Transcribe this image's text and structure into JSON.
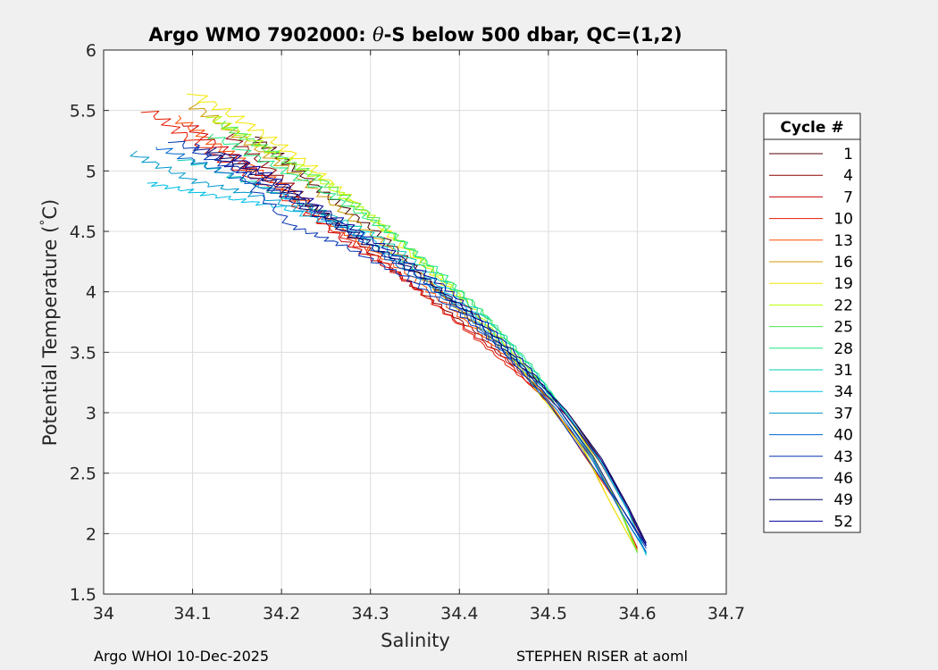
{
  "chart_data": {
    "type": "line",
    "title_prefix": "Argo WMO 7902000: ",
    "title_theta": "θ",
    "title_suffix": "-S below 500 dbar,  QC=(1,2)",
    "xlabel": "Salinity",
    "ylabel_main": "Potential Temperature (",
    "ylabel_deg": "°",
    "ylabel_unit": "C)",
    "xlim": [
      34.0,
      34.7
    ],
    "ylim": [
      1.5,
      6.0
    ],
    "xticks": [
      34.0,
      34.1,
      34.2,
      34.3,
      34.4,
      34.5,
      34.6,
      34.7
    ],
    "xtick_labels": [
      "34",
      "34.1",
      "34.2",
      "34.3",
      "34.4",
      "34.5",
      "34.6",
      "34.7"
    ],
    "yticks": [
      1.5,
      2.0,
      2.5,
      3.0,
      3.5,
      4.0,
      4.5,
      5.0,
      5.5,
      6.0
    ],
    "ytick_labels": [
      "1.5",
      "2",
      "2.5",
      "3",
      "3.5",
      "4",
      "4.5",
      "5",
      "5.5",
      "6"
    ],
    "grid": true,
    "legend_title": "Cycle #",
    "legend_position": "outside-right",
    "series": [
      {
        "name": "1",
        "color": "#4d0000",
        "points": [
          [
            34.17,
            5.28
          ],
          [
            34.21,
            5.05
          ],
          [
            34.26,
            4.75
          ],
          [
            34.32,
            4.42
          ],
          [
            34.37,
            4.05
          ],
          [
            34.42,
            3.72
          ],
          [
            34.47,
            3.38
          ],
          [
            34.52,
            3.02
          ],
          [
            34.56,
            2.6
          ],
          [
            34.59,
            2.22
          ],
          [
            34.61,
            1.92
          ]
        ]
      },
      {
        "name": "4",
        "color": "#8c0000",
        "points": [
          [
            34.14,
            5.3
          ],
          [
            34.19,
            5.0
          ],
          [
            34.24,
            4.68
          ],
          [
            34.3,
            4.33
          ],
          [
            34.36,
            3.98
          ],
          [
            34.42,
            3.66
          ],
          [
            34.47,
            3.33
          ],
          [
            34.52,
            2.98
          ],
          [
            34.56,
            2.57
          ],
          [
            34.59,
            2.18
          ],
          [
            34.61,
            1.9
          ]
        ]
      },
      {
        "name": "7",
        "color": "#cc0000",
        "points": [
          [
            34.09,
            5.4
          ],
          [
            34.15,
            5.1
          ],
          [
            34.21,
            4.8
          ],
          [
            34.27,
            4.42
          ],
          [
            34.33,
            4.15
          ],
          [
            34.39,
            3.8
          ],
          [
            34.45,
            3.45
          ],
          [
            34.5,
            3.08
          ],
          [
            34.55,
            2.62
          ],
          [
            34.58,
            2.2
          ],
          [
            34.6,
            1.88
          ]
        ]
      },
      {
        "name": "10",
        "color": "#e61a00",
        "points": [
          [
            34.05,
            5.5
          ],
          [
            34.11,
            5.2
          ],
          [
            34.18,
            4.88
          ],
          [
            34.25,
            4.55
          ],
          [
            34.32,
            4.22
          ],
          [
            34.38,
            3.85
          ],
          [
            34.44,
            3.48
          ],
          [
            34.5,
            3.1
          ],
          [
            34.54,
            2.65
          ],
          [
            34.58,
            2.22
          ],
          [
            34.6,
            1.86
          ]
        ]
      },
      {
        "name": "13",
        "color": "#ff4d00",
        "points": [
          [
            34.08,
            5.45
          ],
          [
            34.14,
            5.15
          ],
          [
            34.2,
            4.88
          ],
          [
            34.27,
            4.5
          ],
          [
            34.34,
            4.16
          ],
          [
            34.4,
            3.8
          ],
          [
            34.46,
            3.42
          ],
          [
            34.51,
            3.05
          ],
          [
            34.55,
            2.62
          ],
          [
            34.58,
            2.22
          ],
          [
            34.6,
            1.86
          ]
        ]
      },
      {
        "name": "16",
        "color": "#cc9900",
        "points": [
          [
            34.1,
            5.55
          ],
          [
            34.16,
            5.25
          ],
          [
            34.22,
            4.95
          ],
          [
            34.28,
            4.6
          ],
          [
            34.34,
            4.25
          ],
          [
            34.4,
            3.85
          ],
          [
            34.46,
            3.45
          ],
          [
            34.5,
            3.1
          ],
          [
            34.54,
            2.68
          ],
          [
            34.57,
            2.25
          ],
          [
            34.6,
            1.85
          ]
        ]
      },
      {
        "name": "19",
        "color": "#f2e600",
        "points": [
          [
            34.1,
            5.65
          ],
          [
            34.17,
            5.35
          ],
          [
            34.23,
            5.05
          ],
          [
            34.28,
            4.75
          ],
          [
            34.34,
            4.35
          ],
          [
            34.4,
            3.95
          ],
          [
            34.45,
            3.55
          ],
          [
            34.49,
            3.15
          ],
          [
            34.54,
            2.7
          ],
          [
            34.57,
            2.25
          ],
          [
            34.6,
            1.85
          ]
        ]
      },
      {
        "name": "22",
        "color": "#b3ff00",
        "points": [
          [
            34.12,
            5.45
          ],
          [
            34.18,
            5.2
          ],
          [
            34.24,
            4.95
          ],
          [
            34.3,
            4.62
          ],
          [
            34.36,
            4.25
          ],
          [
            34.41,
            3.9
          ],
          [
            34.46,
            3.5
          ],
          [
            34.51,
            3.1
          ],
          [
            34.55,
            2.65
          ],
          [
            34.58,
            2.22
          ],
          [
            34.6,
            1.85
          ]
        ]
      },
      {
        "name": "25",
        "color": "#4de64d",
        "points": [
          [
            34.13,
            5.4
          ],
          [
            34.19,
            5.15
          ],
          [
            34.25,
            4.9
          ],
          [
            34.31,
            4.58
          ],
          [
            34.36,
            4.25
          ],
          [
            34.42,
            3.88
          ],
          [
            34.47,
            3.45
          ],
          [
            34.51,
            3.05
          ],
          [
            34.55,
            2.62
          ],
          [
            34.58,
            2.2
          ],
          [
            34.6,
            1.84
          ]
        ]
      },
      {
        "name": "28",
        "color": "#1ae680",
        "points": [
          [
            34.12,
            5.3
          ],
          [
            34.19,
            5.05
          ],
          [
            34.26,
            4.78
          ],
          [
            34.32,
            4.5
          ],
          [
            34.38,
            4.15
          ],
          [
            34.43,
            3.8
          ],
          [
            34.48,
            3.4
          ],
          [
            34.52,
            3.0
          ],
          [
            34.56,
            2.58
          ],
          [
            34.59,
            2.18
          ],
          [
            34.61,
            1.83
          ]
        ]
      },
      {
        "name": "31",
        "color": "#00ccb3",
        "points": [
          [
            34.09,
            5.1
          ],
          [
            34.16,
            4.92
          ],
          [
            34.24,
            4.68
          ],
          [
            34.31,
            4.45
          ],
          [
            34.37,
            4.15
          ],
          [
            34.43,
            3.78
          ],
          [
            34.48,
            3.38
          ],
          [
            34.52,
            3.0
          ],
          [
            34.56,
            2.58
          ],
          [
            34.59,
            2.18
          ],
          [
            34.61,
            1.83
          ]
        ]
      },
      {
        "name": "34",
        "color": "#00bfe6",
        "points": [
          [
            34.05,
            4.9
          ],
          [
            34.12,
            4.8
          ],
          [
            34.2,
            4.7
          ],
          [
            34.29,
            4.48
          ],
          [
            34.36,
            4.15
          ],
          [
            34.42,
            3.8
          ],
          [
            34.47,
            3.4
          ],
          [
            34.52,
            3.0
          ],
          [
            34.56,
            2.58
          ],
          [
            34.59,
            2.18
          ],
          [
            34.61,
            1.82
          ]
        ]
      },
      {
        "name": "37",
        "color": "#0099cc",
        "points": [
          [
            34.03,
            5.15
          ],
          [
            34.1,
            4.92
          ],
          [
            34.18,
            4.78
          ],
          [
            34.27,
            4.55
          ],
          [
            34.34,
            4.2
          ],
          [
            34.41,
            3.83
          ],
          [
            34.46,
            3.45
          ],
          [
            34.51,
            3.05
          ],
          [
            34.55,
            2.62
          ],
          [
            34.58,
            2.2
          ],
          [
            34.61,
            1.84
          ]
        ]
      },
      {
        "name": "40",
        "color": "#0066cc",
        "points": [
          [
            34.06,
            5.2
          ],
          [
            34.13,
            5.0
          ],
          [
            34.21,
            4.78
          ],
          [
            34.28,
            4.48
          ],
          [
            34.35,
            4.12
          ],
          [
            34.41,
            3.8
          ],
          [
            34.46,
            3.42
          ],
          [
            34.51,
            3.02
          ],
          [
            34.55,
            2.6
          ],
          [
            34.58,
            2.2
          ],
          [
            34.61,
            1.85
          ]
        ]
      },
      {
        "name": "43",
        "color": "#0033b3",
        "points": [
          [
            34.08,
            5.25
          ],
          [
            34.15,
            5.0
          ],
          [
            34.21,
            4.55
          ],
          [
            34.27,
            4.38
          ],
          [
            34.34,
            4.12
          ],
          [
            34.4,
            3.82
          ],
          [
            34.45,
            3.5
          ],
          [
            34.5,
            3.08
          ],
          [
            34.54,
            2.66
          ],
          [
            34.58,
            2.24
          ],
          [
            34.61,
            1.88
          ]
        ]
      },
      {
        "name": "46",
        "color": "#001a99",
        "points": [
          [
            34.1,
            5.22
          ],
          [
            34.16,
            4.98
          ],
          [
            34.22,
            4.72
          ],
          [
            34.29,
            4.42
          ],
          [
            34.35,
            4.15
          ],
          [
            34.41,
            3.82
          ],
          [
            34.46,
            3.46
          ],
          [
            34.51,
            3.05
          ],
          [
            34.55,
            2.64
          ],
          [
            34.58,
            2.24
          ],
          [
            34.61,
            1.9
          ]
        ]
      },
      {
        "name": "49",
        "color": "#000066",
        "points": [
          [
            34.12,
            5.18
          ],
          [
            34.18,
            4.95
          ],
          [
            34.24,
            4.68
          ],
          [
            34.3,
            4.4
          ],
          [
            34.36,
            4.12
          ],
          [
            34.42,
            3.78
          ],
          [
            34.47,
            3.4
          ],
          [
            34.52,
            3.02
          ],
          [
            34.56,
            2.62
          ],
          [
            34.59,
            2.22
          ],
          [
            34.61,
            1.92
          ]
        ]
      },
      {
        "name": "52",
        "color": "#000099",
        "points": [
          [
            34.14,
            5.15
          ],
          [
            34.2,
            4.9
          ],
          [
            34.26,
            4.62
          ],
          [
            34.32,
            4.35
          ],
          [
            34.38,
            4.06
          ],
          [
            34.43,
            3.74
          ],
          [
            34.48,
            3.36
          ],
          [
            34.52,
            2.98
          ],
          [
            34.56,
            2.6
          ],
          [
            34.59,
            2.2
          ],
          [
            34.61,
            1.9
          ]
        ]
      }
    ]
  },
  "footer": {
    "left": "Argo WHOI 10-Dec-2025",
    "right": "STEPHEN RISER at aoml"
  }
}
